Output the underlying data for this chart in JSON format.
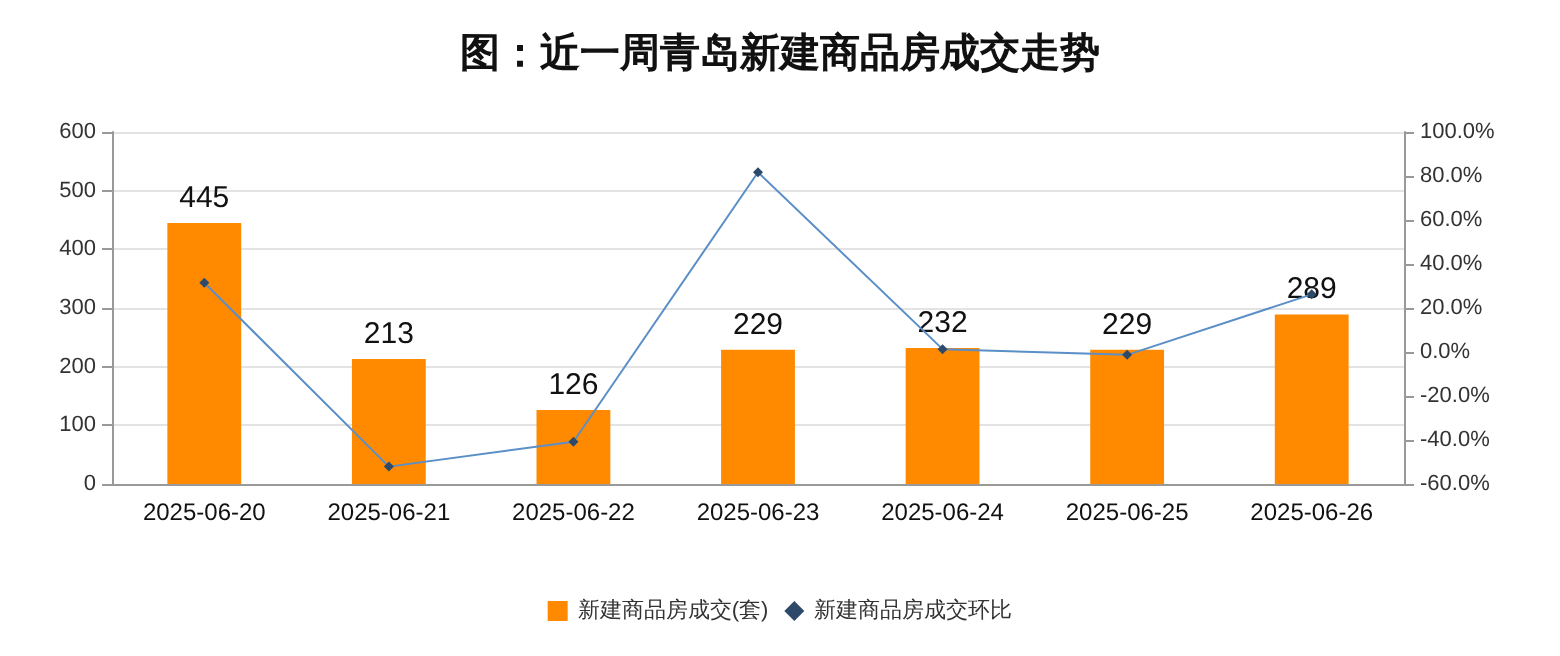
{
  "chart_data": {
    "type": "bar",
    "title": "图：近一周青岛新建商品房成交走势",
    "categories": [
      "2025-06-20",
      "2025-06-21",
      "2025-06-22",
      "2025-06-23",
      "2025-06-24",
      "2025-06-25",
      "2025-06-26"
    ],
    "series": [
      {
        "name": "新建商品房成交(套)",
        "color": "#ff8a00",
        "values": [
          445,
          213,
          126,
          229,
          232,
          229,
          289
        ],
        "data_labels": true
      },
      {
        "name": "新建商品房成交环比",
        "type": "line",
        "axis": "y2",
        "color": "#5b8fc7",
        "marker": "diamond",
        "values": [
          31.5,
          -52.1,
          -40.8,
          81.7,
          1.3,
          -1.3,
          26.2
        ]
      }
    ],
    "ylim": [
      0,
      600
    ],
    "yticks": [
      0,
      100,
      200,
      300,
      400,
      500,
      600
    ],
    "y2lim": [
      -60,
      100
    ],
    "y2ticks": [
      {
        "value": -60,
        "label": "-60.0%"
      },
      {
        "value": -40,
        "label": "-40.0%"
      },
      {
        "value": -20,
        "label": "-20.0%"
      },
      {
        "value": 0,
        "label": "0.0%"
      },
      {
        "value": 20,
        "label": "20.0%"
      },
      {
        "value": 40,
        "label": "40.0%"
      },
      {
        "value": 60,
        "label": "60.0%"
      },
      {
        "value": 80,
        "label": "80.0%"
      },
      {
        "value": 100,
        "label": "100.0%"
      }
    ],
    "grid": "y",
    "legend": "bottom"
  }
}
